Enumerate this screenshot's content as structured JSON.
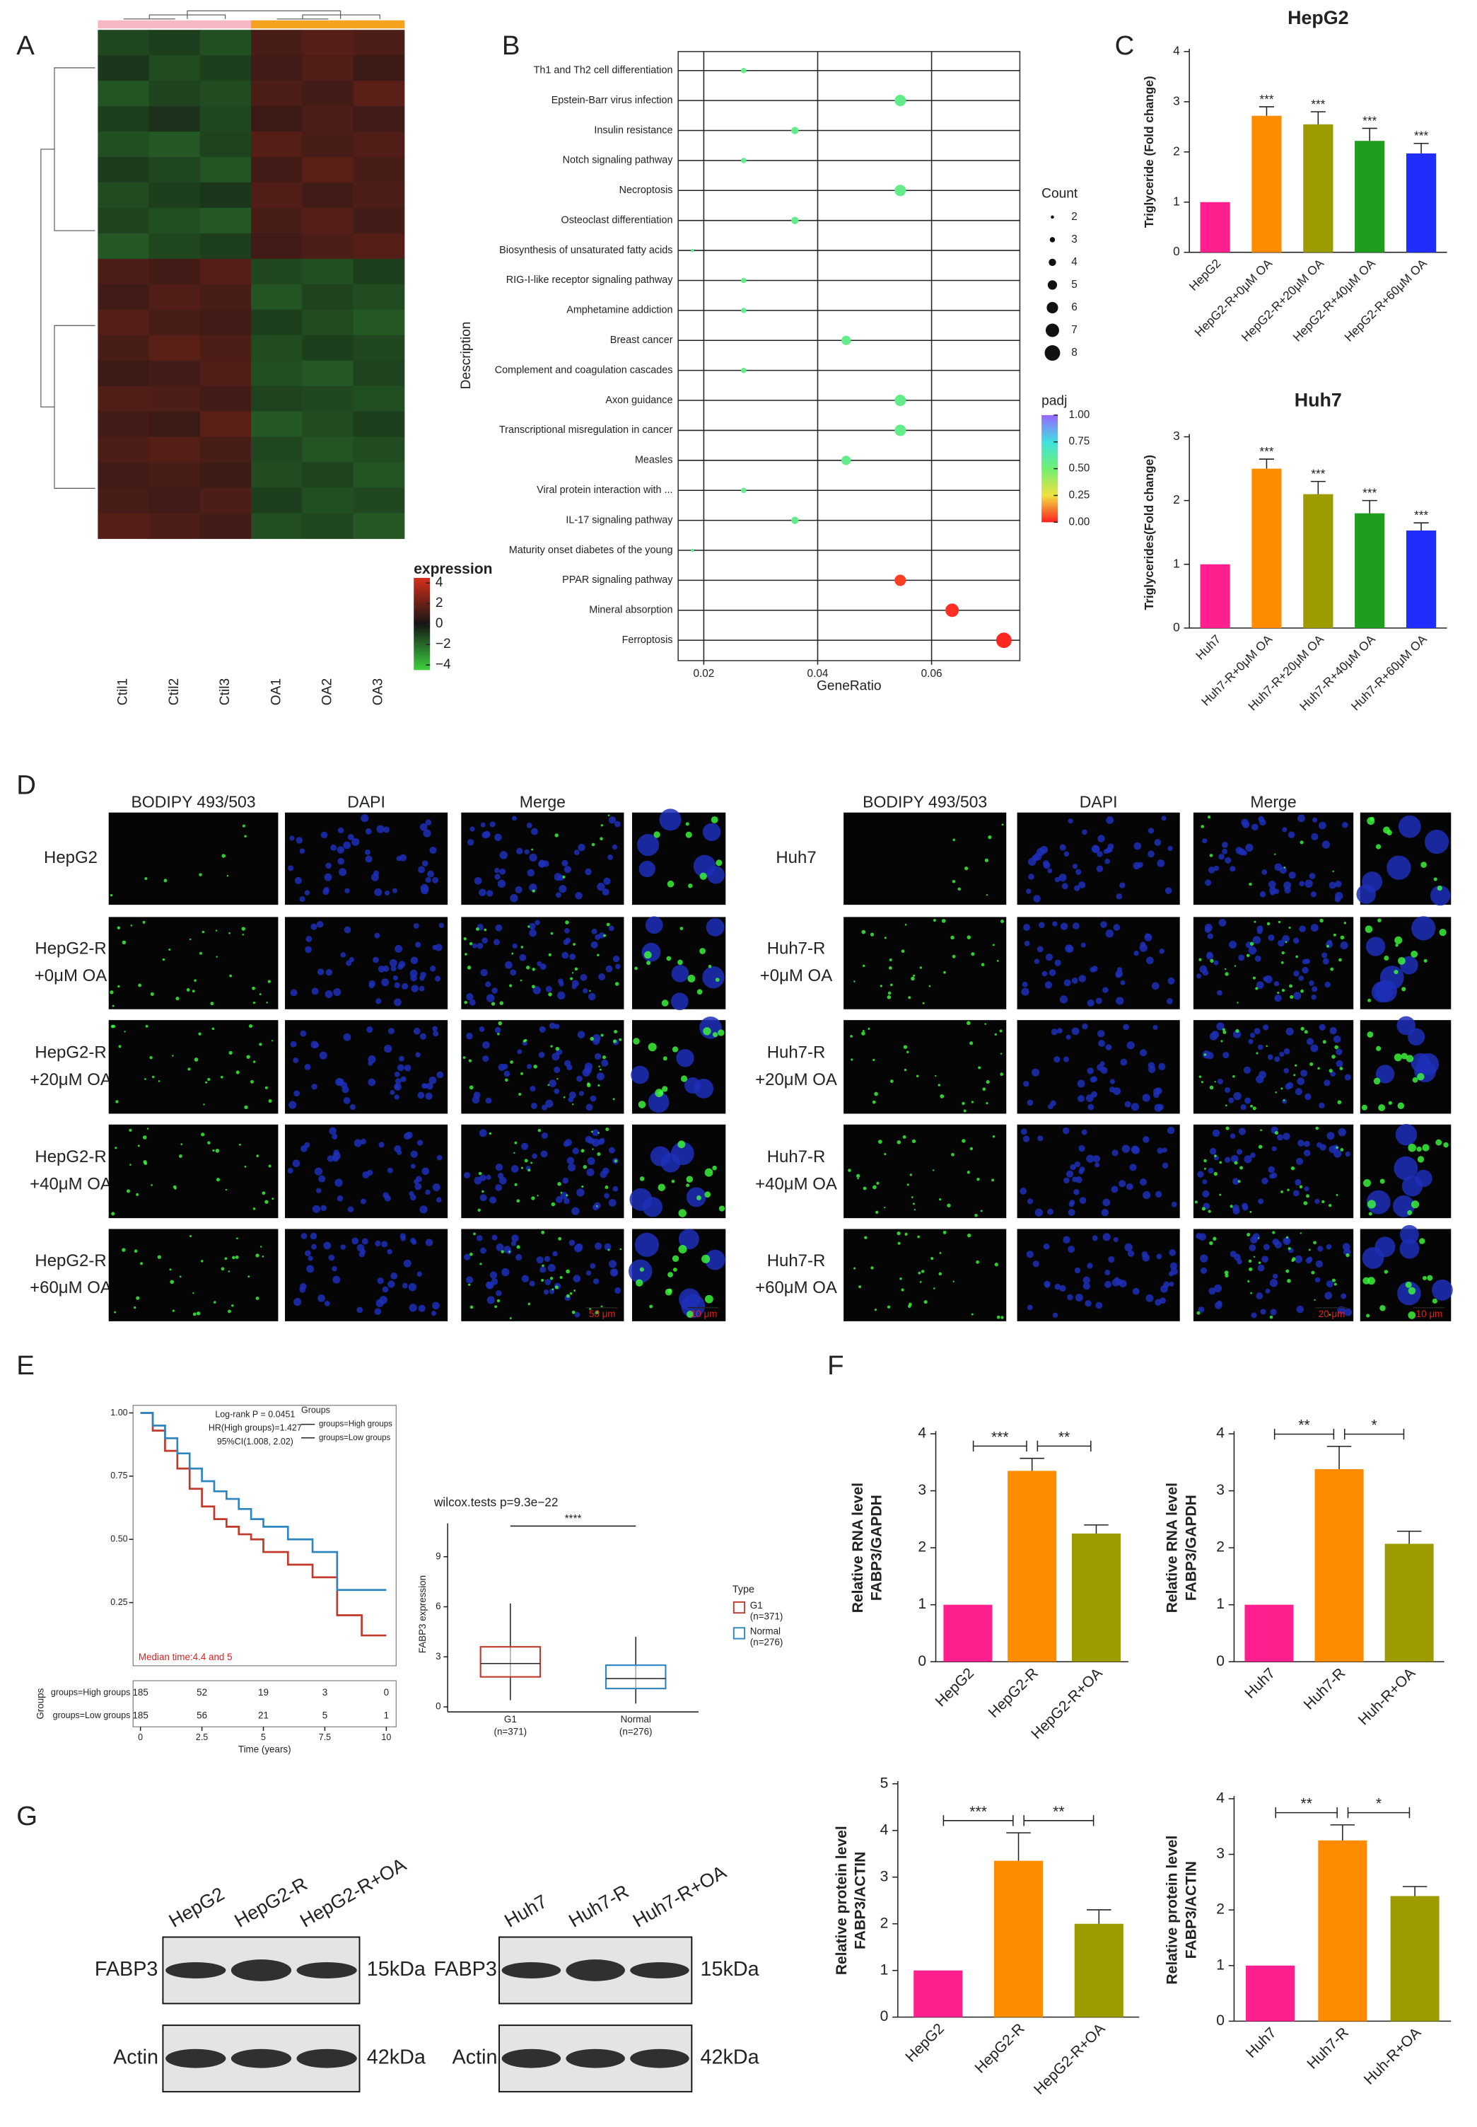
{
  "panel_labels": [
    "A",
    "B",
    "C",
    "D",
    "E",
    "F",
    "G"
  ],
  "chart_data": [
    {
      "type": "heatmap",
      "columns": [
        "Ctil1",
        "Ctil2",
        "Ctil3",
        "OA1",
        "OA2",
        "OA3"
      ],
      "legend_title": "expression",
      "values": [
        [
          -1.2,
          -1.0,
          -1.4,
          1.2,
          1.5,
          1.3
        ],
        [
          -0.8,
          -1.3,
          -1.0,
          1.0,
          1.4,
          0.9
        ],
        [
          -1.5,
          -1.1,
          -1.3,
          1.3,
          1.1,
          1.6
        ],
        [
          -1.0,
          -0.7,
          -1.2,
          0.9,
          1.3,
          1.0
        ],
        [
          -1.4,
          -1.6,
          -1.1,
          1.5,
          1.2,
          1.4
        ],
        [
          -0.9,
          -1.2,
          -1.5,
          1.1,
          1.6,
          1.2
        ],
        [
          -1.3,
          -1.0,
          -0.8,
          1.4,
          1.0,
          1.3
        ],
        [
          -1.1,
          -1.4,
          -1.6,
          1.2,
          1.5,
          1.1
        ],
        [
          -1.6,
          -1.2,
          -1.0,
          1.0,
          1.3,
          1.5
        ],
        [
          1.3,
          1.1,
          1.5,
          -1.2,
          -1.4,
          -1.0
        ],
        [
          1.0,
          1.4,
          1.2,
          -1.5,
          -1.1,
          -1.3
        ],
        [
          1.5,
          1.2,
          1.0,
          -1.0,
          -1.3,
          -1.6
        ],
        [
          1.2,
          1.6,
          1.3,
          -1.3,
          -1.0,
          -1.2
        ],
        [
          0.9,
          1.1,
          1.4,
          -1.4,
          -1.6,
          -1.1
        ],
        [
          1.4,
          1.3,
          1.1,
          -1.1,
          -1.2,
          -1.4
        ],
        [
          1.1,
          0.9,
          1.6,
          -1.6,
          -1.3,
          -1.0
        ],
        [
          1.3,
          1.5,
          1.2,
          -1.2,
          -1.5,
          -1.3
        ],
        [
          1.0,
          1.2,
          0.9,
          -1.3,
          -1.1,
          -1.5
        ],
        [
          1.2,
          1.0,
          1.3,
          -1.0,
          -1.4,
          -1.2
        ],
        [
          1.5,
          1.3,
          1.1,
          -1.4,
          -1.2,
          -1.6
        ]
      ],
      "zlim": [
        -4.5,
        4.5
      ],
      "zticks": [
        4,
        2,
        0,
        {
          "value": -2,
          "label": "−2"
        },
        {
          "value": -4,
          "label": "−4"
        }
      ],
      "colors": [
        "#3fd13f",
        "#151515",
        "#d6301c"
      ],
      "group_colors": [
        "#f7b8c6",
        "#f5a21f"
      ]
    },
    {
      "type": "dot",
      "xlabel": "GeneRatio",
      "ylabel": "Description",
      "categories": [
        "Th1 and Th2 cell differentiation",
        "Epstein-Barr virus infection",
        "Insulin resistance",
        "Notch signaling pathway",
        "Necroptosis",
        "Osteoclast differentiation",
        "Biosynthesis of unsaturated fatty acids",
        "RIG-I-like receptor signaling pathway",
        "Amphetamine addiction",
        "Breast cancer",
        "Complement and coagulation cascades",
        "Axon guidance",
        "Transcriptional misregulation in cancer",
        "Measles",
        "Viral protein interaction with ...",
        "IL-17 signaling pathway",
        "Maturity onset diabetes of the young",
        "PPAR signaling pathway",
        "Mineral absorption",
        "Ferroptosis"
      ],
      "values": [
        0.027,
        0.0545,
        0.036,
        0.027,
        0.0545,
        0.036,
        0.018,
        0.027,
        0.027,
        0.045,
        0.027,
        0.0545,
        0.0545,
        0.045,
        0.027,
        0.036,
        0.018,
        0.0545,
        0.0636,
        0.0727
      ],
      "counts": [
        3,
        6,
        4,
        3,
        6,
        4,
        2,
        3,
        3,
        5,
        3,
        6,
        6,
        5,
        3,
        4,
        2,
        6,
        7,
        8
      ],
      "padj": [
        0.56,
        0.56,
        0.56,
        0.56,
        0.56,
        0.56,
        0.56,
        0.56,
        0.56,
        0.56,
        0.56,
        0.56,
        0.56,
        0.56,
        0.56,
        0.56,
        0.56,
        0.04,
        0.02,
        0.01
      ],
      "xlim": [
        0.0155,
        0.0755
      ],
      "xticks": [
        0.02,
        0.04,
        0.06
      ],
      "grid": true,
      "size_legend_title": "Count",
      "size_ticks": [
        2,
        3,
        4,
        5,
        6,
        7,
        8
      ],
      "color_legend_title": "padj",
      "padj_lim": [
        0,
        1
      ],
      "color_ticks": [
        {
          "value": 1,
          "label": "1.00"
        },
        0.75,
        {
          "value": 0.5,
          "label": "0.50"
        },
        0.25,
        {
          "value": 0,
          "label": "0.00"
        }
      ],
      "colormap": [
        "#ff2020",
        "#f0e040",
        "#70f070",
        "#40e0e0",
        "#9966ff"
      ]
    },
    {
      "type": "bar",
      "title": "HepG2",
      "ylabel": "Triglyceride (Fold change)",
      "categories": [
        "HepG2",
        "HepG2-R+0μM OA",
        "HepG2-R+20μM OA",
        "HepG2-R+40μM OA",
        "HepG2-R+60μM OA"
      ],
      "values": [
        1,
        2.72,
        2.55,
        2.22,
        1.97
      ],
      "errors": [
        null,
        0.18,
        0.25,
        0.25,
        0.2
      ],
      "significance": [
        null,
        "***",
        "***",
        "***",
        "***"
      ],
      "colors": [
        "#ff1f8f",
        "#ff8c00",
        "#9c9c00",
        "#1e9e1e",
        "#1f2eff"
      ],
      "ylim": [
        0,
        4
      ],
      "yticks": [
        0,
        1,
        2,
        3,
        4
      ]
    },
    {
      "type": "bar",
      "title": "Huh7",
      "ylabel": "Triglycerides(Fold change)",
      "categories": [
        "Huh7",
        "Huh7-R+0μM OA",
        "Huh7-R+20μM OA",
        "Huh7-R+40μM OA",
        "Huh7-R+60μM OA"
      ],
      "values": [
        1,
        2.5,
        2.1,
        1.8,
        1.53
      ],
      "errors": [
        null,
        0.15,
        0.2,
        0.2,
        0.12
      ],
      "significance": [
        null,
        "***",
        "***",
        "***",
        "***"
      ],
      "colors": [
        "#ff1f8f",
        "#ff8c00",
        "#9c9c00",
        "#1e9e1e",
        "#1f2eff"
      ],
      "ylim": [
        0,
        3
      ],
      "yticks": [
        0,
        1,
        2,
        3
      ]
    },
    {
      "type": "step",
      "annotations": [
        "Log-rank P = 0.0451",
        "HR(High groups)=1.427",
        "95%CI(1.008, 2.02)"
      ],
      "legend_title": "Groups",
      "median_label": "Median time:4.4 and 5",
      "xlabel": "Time (years)",
      "x": [
        0,
        0.5,
        1,
        1.5,
        2,
        2.5,
        3,
        3.5,
        4,
        4.5,
        5,
        6,
        7,
        8,
        9,
        10
      ],
      "series": [
        {
          "name": "groups=High groups",
          "color": "#c0392b",
          "values": [
            1,
            0.93,
            0.85,
            0.78,
            0.7,
            0.63,
            0.58,
            0.55,
            0.52,
            0.5,
            0.45,
            0.4,
            0.35,
            0.2,
            0.12,
            0.12
          ]
        },
        {
          "name": "groups=Low groups",
          "color": "#2e86c1",
          "values": [
            1,
            0.95,
            0.9,
            0.84,
            0.78,
            0.73,
            0.69,
            0.66,
            0.62,
            0.58,
            0.55,
            0.5,
            0.45,
            0.3,
            0.3,
            0.3
          ]
        }
      ],
      "xlim": [
        -0.3,
        10.4
      ],
      "ylim": [
        0,
        1.03
      ],
      "xticks": [
        0,
        2.5,
        5,
        7.5,
        10
      ],
      "yticks": [
        0.25,
        {
          "value": 0.5,
          "label": "0.50"
        },
        0.75,
        {
          "value": 1,
          "label": "1.00"
        }
      ],
      "risk_table": {
        "ylabel": "Groups",
        "rows": [
          {
            "name": "groups=High groups",
            "values": [
              185,
              52,
              19,
              3,
              0
            ]
          },
          {
            "name": "groups=Low groups",
            "values": [
              185,
              56,
              21,
              5,
              1
            ]
          }
        ]
      }
    },
    {
      "type": "box",
      "title": "wilcox.tests p=9.3e−22",
      "significance": "****",
      "ylabel": "FABP3 expression",
      "legend_title": "Type",
      "categories": [
        [
          "G1",
          "(n=371)"
        ],
        [
          "Normal",
          "(n=276)"
        ]
      ],
      "colors": [
        "#c0392b",
        "#2e86c1"
      ],
      "boxes": [
        {
          "min": 0.4,
          "q1": 1.8,
          "median": 2.6,
          "q3": 3.6,
          "max": 6.2
        },
        {
          "min": 0.2,
          "q1": 1.1,
          "median": 1.7,
          "q3": 2.5,
          "max": 4.2
        }
      ],
      "ylim": [
        -0.3,
        11
      ],
      "yticks": [
        0,
        3,
        6,
        9
      ]
    },
    {
      "type": "bar",
      "ylabel": [
        "Relative RNA level",
        "FABP3/GAPDH"
      ],
      "categories": [
        "HepG2",
        "HepG2-R",
        "HepG2-R+OA"
      ],
      "values": [
        1,
        3.35,
        2.25
      ],
      "errors": [
        null,
        0.22,
        0.15
      ],
      "comparisons": [
        "***",
        "**"
      ],
      "colors": [
        "#ff1f8f",
        "#ff8c00",
        "#9c9c00"
      ],
      "ylim": [
        0,
        4
      ],
      "yticks": [
        0,
        1,
        2,
        3,
        4
      ]
    },
    {
      "type": "bar",
      "ylabel": [
        "Relative RNA level",
        "FABP3/GAPDH"
      ],
      "categories": [
        "Huh7",
        "Huh7-R",
        "Huh-R+OA"
      ],
      "values": [
        1,
        3.38,
        2.07
      ],
      "errors": [
        null,
        0.4,
        0.22
      ],
      "comparisons": [
        "**",
        "*"
      ],
      "colors": [
        "#ff1f8f",
        "#ff8c00",
        "#9c9c00"
      ],
      "ylim": [
        0,
        4
      ],
      "yticks": [
        0,
        1,
        2,
        3,
        4
      ]
    },
    {
      "type": "bar",
      "ylabel": [
        "Relative protein level",
        "FABP3/ACTIN"
      ],
      "categories": [
        "HepG2",
        "HepG2-R",
        "HepG2-R+OA"
      ],
      "values": [
        1,
        3.35,
        2.0
      ],
      "errors": [
        null,
        0.6,
        0.3
      ],
      "comparisons": [
        "***",
        "**"
      ],
      "colors": [
        "#ff1f8f",
        "#ff8c00",
        "#9c9c00"
      ],
      "ylim": [
        0,
        5
      ],
      "yticks": [
        0,
        1,
        2,
        3,
        4,
        5
      ]
    },
    {
      "type": "bar",
      "ylabel": [
        "Relative protein level",
        "FABP3/ACTIN"
      ],
      "categories": [
        "Huh7",
        "Huh7-R",
        "Huh-R+OA"
      ],
      "values": [
        1,
        3.25,
        2.25
      ],
      "errors": [
        null,
        0.28,
        0.17
      ],
      "comparisons": [
        "**",
        "*"
      ],
      "colors": [
        "#ff1f8f",
        "#ff8c00",
        "#9c9c00"
      ],
      "ylim": [
        0,
        4
      ],
      "yticks": [
        0,
        1,
        2,
        3,
        4
      ]
    }
  ],
  "microscopy": [
    {
      "columns": [
        "BODIPY 493/503",
        "DAPI",
        "Merge"
      ],
      "rows": [
        [
          "HepG2"
        ],
        [
          "HepG2-R",
          "+0μM OA"
        ],
        [
          "HepG2-R",
          "+20μM OA"
        ],
        [
          "HepG2-R",
          "+40μM OA"
        ],
        [
          "HepG2-R",
          "+60μM OA"
        ]
      ],
      "scale_bars": [
        "50 μm",
        "10 μm"
      ]
    },
    {
      "columns": [
        "BODIPY 493/503",
        "DAPI",
        "Merge"
      ],
      "rows": [
        [
          "Huh7"
        ],
        [
          "Huh7-R",
          "+0μM OA"
        ],
        [
          "Huh7-R",
          "+20μM OA"
        ],
        [
          "Huh7-R",
          "+40μM OA"
        ],
        [
          "Huh7-R",
          "+60μM OA"
        ]
      ],
      "scale_bars": [
        "20 μm",
        "10 μm"
      ]
    }
  ],
  "blots": [
    {
      "lanes": [
        "HepG2",
        "HepG2-R",
        "HepG2-R+OA"
      ],
      "proteins": [
        "FABP3",
        "Actin"
      ],
      "sizes": [
        "15kDa",
        "42kDa"
      ]
    },
    {
      "lanes": [
        "Huh7",
        "Huh7-R",
        "Huh7-R+OA"
      ],
      "proteins": [
        "FABP3",
        "Actin"
      ],
      "sizes": [
        "15kDa",
        "42kDa"
      ]
    }
  ]
}
